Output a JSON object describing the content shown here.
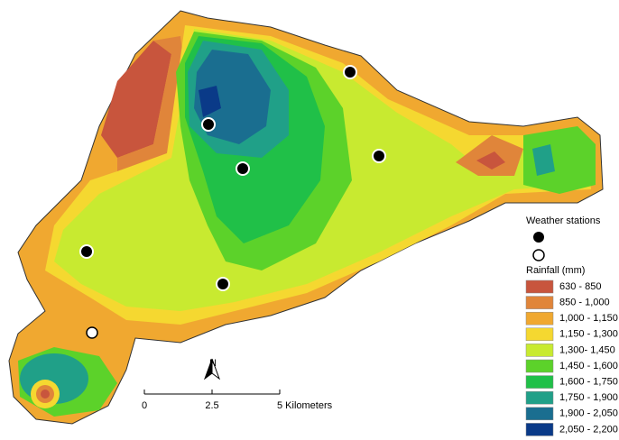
{
  "legend": {
    "stations_title": "Weather stations",
    "rainfall_title": "Rainfall (mm)",
    "classes": [
      {
        "label": "630 - 850",
        "color": "#c8553d"
      },
      {
        "label": "850 - 1,000",
        "color": "#e0853a"
      },
      {
        "label": "1,000 - 1,150",
        "color": "#f0a830"
      },
      {
        "label": "1,150 - 1,300",
        "color": "#f5d830"
      },
      {
        "label": "1,300- 1,450",
        "color": "#c8ea30"
      },
      {
        "label": "1,450 - 1,600",
        "color": "#5cd22a"
      },
      {
        "label": "1,600 - 1,750",
        "color": "#20c048"
      },
      {
        "label": "1,750 - 1,900",
        "color": "#20a088"
      },
      {
        "label": "1,900 - 2,050",
        "color": "#1a6e90"
      },
      {
        "label": "2,050 - 2,200",
        "color": "#0a3a88"
      }
    ]
  },
  "scale_bar": {
    "labels": [
      "0",
      "2.5",
      "5 Kilometers"
    ]
  },
  "north_arrow": {
    "label": "N"
  }
}
